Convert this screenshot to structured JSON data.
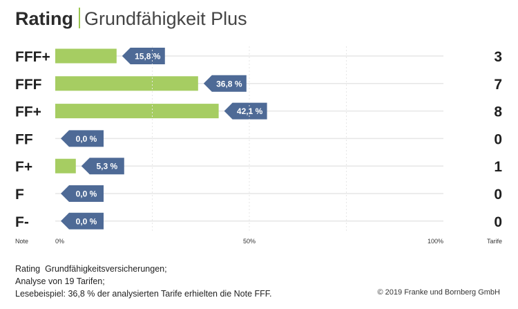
{
  "header": {
    "title_bold": "Rating",
    "title_rest": "Grundfähigkeit Plus"
  },
  "chart_data": {
    "type": "bar",
    "orientation": "horizontal",
    "categories": [
      "FFF+",
      "FFF",
      "FF+",
      "FF",
      "F+",
      "F",
      "F-"
    ],
    "values": [
      15.8,
      36.8,
      42.1,
      0.0,
      5.3,
      0.0,
      0.0
    ],
    "value_labels": [
      "15,8 %",
      "36,8 %",
      "42,1 %",
      "0,0 %",
      "5,3 %",
      "0,0 %",
      "0,0 %"
    ],
    "counts": [
      3,
      7,
      8,
      0,
      1,
      0,
      0
    ],
    "xlim": [
      0,
      100
    ],
    "x_ticks": [
      "0%",
      "50%",
      "100%"
    ],
    "left_axis_label": "Note",
    "right_axis_label": "Tarife",
    "grid": true,
    "colors": {
      "bar": "#a6cd62",
      "label_bg": "#4e6a96",
      "grid": "#e6e6e6"
    }
  },
  "footer": {
    "lines": [
      "Rating  Grundfähigkeitsversicherungen;",
      "Analyse von 19 Tarifen;",
      "Lesebeispiel: 36,8 % der analysierten Tarife erhielten die Note FFF."
    ],
    "copyright": "© 2019 Franke und Bornberg GmbH"
  }
}
